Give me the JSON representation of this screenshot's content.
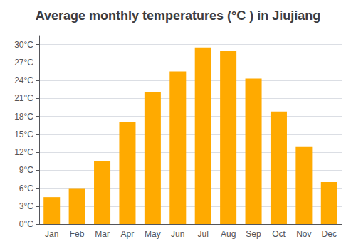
{
  "chart_data": {
    "type": "bar",
    "title": "Average monthly temperatures (°C ) in Jiujiang",
    "categories": [
      "Jan",
      "Feb",
      "Mar",
      "Apr",
      "May",
      "Jun",
      "Jul",
      "Aug",
      "Sep",
      "Oct",
      "Nov",
      "Dec"
    ],
    "values": [
      4.5,
      6.0,
      10.5,
      17.0,
      22.0,
      25.5,
      29.5,
      29.0,
      24.3,
      18.8,
      13.0,
      7.0
    ],
    "color": "#FFAA00",
    "ylim": [
      0,
      31.5
    ],
    "yticks": [
      {
        "value": 0,
        "label": "0°C"
      },
      {
        "value": 3,
        "label": "3°C"
      },
      {
        "value": 6,
        "label": "6°C"
      },
      {
        "value": 9,
        "label": "9°C"
      },
      {
        "value": 12,
        "label": "12°C"
      },
      {
        "value": 15,
        "label": "15°C"
      },
      {
        "value": 18,
        "label": "18°C"
      },
      {
        "value": 21,
        "label": "21°C"
      },
      {
        "value": 24,
        "label": "24°C"
      },
      {
        "value": 27,
        "label": "27°C"
      },
      {
        "value": 30,
        "label": "30°C"
      }
    ],
    "grid": true
  }
}
